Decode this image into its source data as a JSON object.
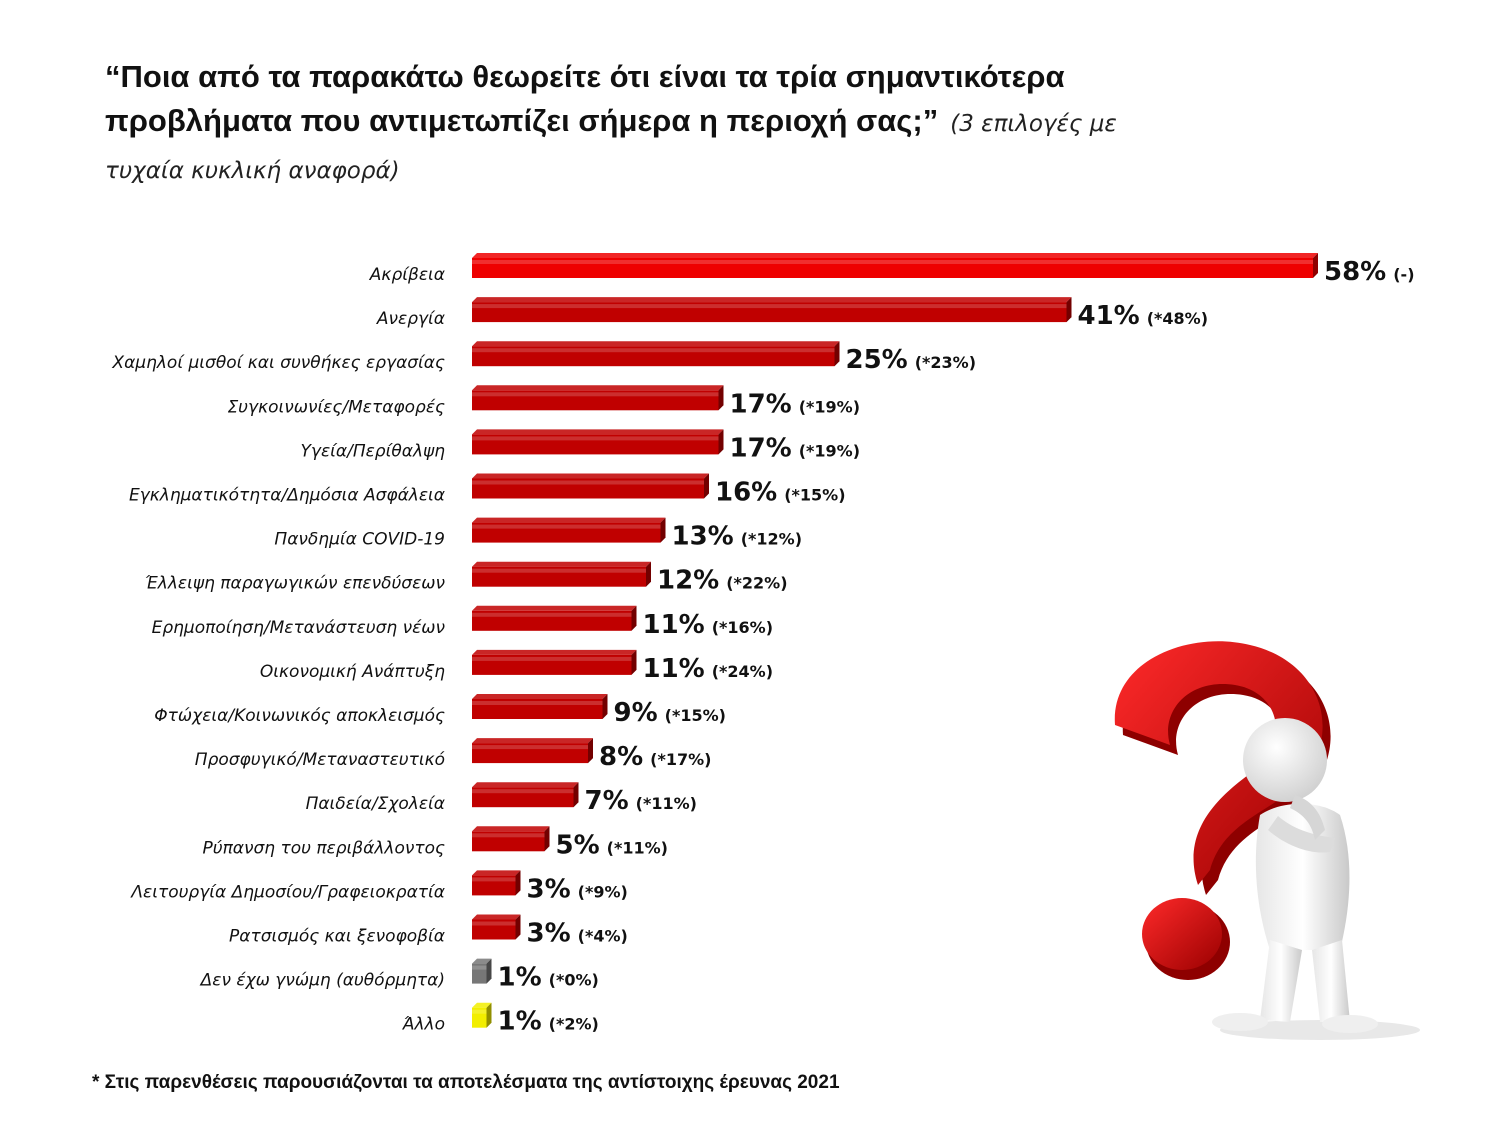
{
  "title": {
    "question": "“Ποια από τα παρακάτω θεωρείτε ότι είναι τα τρία σημαντικότερα προβλήματα που αντιμετωπίζει σήμερα η περιοχή σας;”",
    "note": "(3 επιλογές με τυχαία κυκλική αναφορά)"
  },
  "chart_data": {
    "type": "bar",
    "orientation": "horizontal",
    "title": "“Ποια από τα παρακάτω θεωρείτε ότι είναι τα τρία σημαντικότερα προβλήματα που αντιμετωπίζει σήμερα η περιοχή σας;”",
    "unit": "%",
    "xlim": [
      0,
      58
    ],
    "categories": [
      "Ακρίβεια",
      "Ανεργία",
      "Χαμηλοί μισθοί και συνθήκες εργασίας",
      "Συγκοινωνίες/Μεταφορές",
      "Υγεία/Περίθαλψη",
      "Εγκληματικότητα/Δημόσια Ασφάλεια",
      "Πανδημία COVID-19",
      "Έλλειψη παραγωγικών επενδύσεων",
      "Ερημοποίηση/Μετανάστευση νέων",
      "Οικονομική Ανάπτυξη",
      "Φτώχεια/Κοινωνικός αποκλεισμός",
      "Προσφυγικό/Μεταναστευτικό",
      "Παιδεία/Σχολεία",
      "Ρύπανση του περιβάλλοντος",
      "Λειτουργία Δημοσίου/Γραφειοκρατία",
      "Ρατσισμός και ξενοφοβία",
      "Δεν έχω γνώμη (αυθόρμητα)",
      "Άλλο"
    ],
    "values": [
      58,
      41,
      25,
      17,
      17,
      16,
      13,
      12,
      11,
      11,
      9,
      8,
      7,
      5,
      3,
      3,
      1,
      1
    ],
    "value_labels": [
      "58%",
      "41%",
      "25%",
      "17%",
      "17%",
      "16%",
      "13%",
      "12%",
      "11%",
      "11%",
      "9%",
      "8%",
      "7%",
      "5%",
      "3%",
      "3%",
      "1%",
      "1%"
    ],
    "previous_labels": [
      "(-)",
      "(*48%)",
      "(*23%)",
      "(*19%)",
      "(*19%)",
      "(*15%)",
      "(*12%)",
      "(*22%)",
      "(*16%)",
      "(*24%)",
      "(*15%)",
      "(*17%)",
      "(*11%)",
      "(*11%)",
      "(*9%)",
      "(*4%)",
      "(*0%)",
      "(*2%)"
    ],
    "colors": [
      "#ee0000",
      "#c00000",
      "#c00000",
      "#c00000",
      "#c00000",
      "#c00000",
      "#c00000",
      "#c00000",
      "#c00000",
      "#c00000",
      "#c00000",
      "#c00000",
      "#c00000",
      "#c00000",
      "#c00000",
      "#c00000",
      "#777777",
      "#f2ee00"
    ]
  },
  "footnote": "* Στις παρενθέσεις παρουσιάζονται τα αποτελέσματα της αντίστοιχης έρευνας 2021"
}
